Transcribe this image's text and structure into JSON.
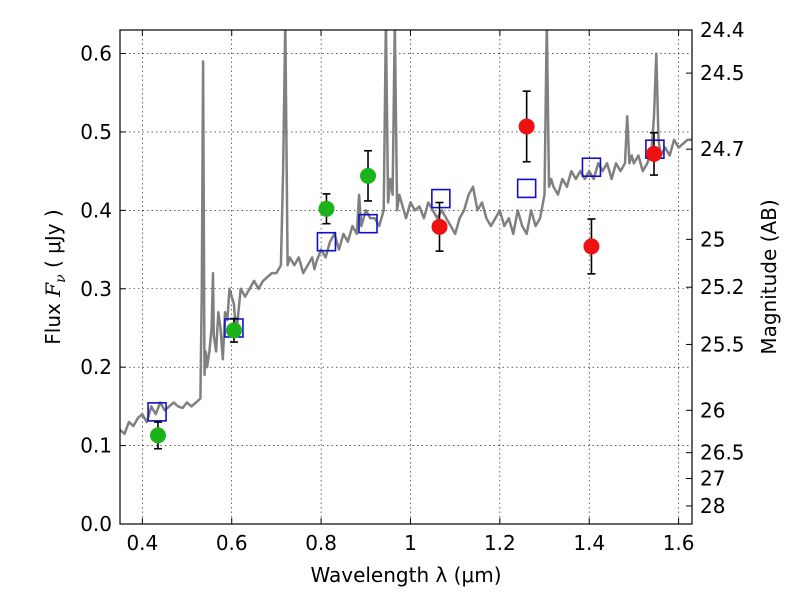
{
  "chart_data": {
    "type": "scatter",
    "xlabel": "Wavelength  λ (μm)",
    "ylabel": "Flux  F_ν  ( μJy )",
    "ylabel_parts": {
      "prefix": "Flux  ",
      "symbol": "F",
      "subscript": "ν",
      "unit": "  ( μJy )"
    },
    "y2label": "Magnitude (AB)",
    "xlim": [
      0.35,
      1.63
    ],
    "ylim": [
      0.0,
      0.63
    ],
    "grid": true,
    "xticks": [
      0.4,
      0.6,
      0.8,
      1.0,
      1.2,
      1.4,
      1.6
    ],
    "xtick_labels": [
      "0.4",
      "0.6",
      "0.8",
      "1",
      "1.2",
      "1.4",
      "1.6"
    ],
    "yticks": [
      0.0,
      0.1,
      0.2,
      0.3,
      0.4,
      0.5,
      0.6
    ],
    "ytick_labels": [
      "0.0",
      "0.1",
      "0.2",
      "0.3",
      "0.4",
      "0.5",
      "0.6"
    ],
    "right_ticks": [
      {
        "label": "24.4",
        "flux": 0.63
      },
      {
        "label": "24.5",
        "flux": 0.575
      },
      {
        "label": "24.7",
        "flux": 0.478
      },
      {
        "label": "25",
        "flux": 0.363
      },
      {
        "label": "25.2",
        "flux": 0.302
      },
      {
        "label": "25.5",
        "flux": 0.229
      },
      {
        "label": "26",
        "flux": 0.145
      },
      {
        "label": "26.5",
        "flux": 0.091
      },
      {
        "label": "27",
        "flux": 0.058
      },
      {
        "label": "28",
        "flux": 0.023
      }
    ],
    "colors": {
      "spectrum": "#808080",
      "green": "#1ab41a",
      "red": "#ee1111",
      "model": "#1010cc",
      "errorbar": "#000000"
    },
    "spectrum": {
      "name": "model spectrum",
      "x": [
        0.35,
        0.36,
        0.37,
        0.38,
        0.39,
        0.4,
        0.41,
        0.42,
        0.43,
        0.44,
        0.45,
        0.46,
        0.47,
        0.48,
        0.49,
        0.5,
        0.51,
        0.52,
        0.53,
        0.533,
        0.536,
        0.539,
        0.542,
        0.545,
        0.55,
        0.555,
        0.558,
        0.56,
        0.565,
        0.57,
        0.575,
        0.58,
        0.585,
        0.59,
        0.595,
        0.6,
        0.605,
        0.61,
        0.615,
        0.62,
        0.63,
        0.64,
        0.65,
        0.66,
        0.67,
        0.68,
        0.69,
        0.7,
        0.71,
        0.715,
        0.72,
        0.725,
        0.73,
        0.74,
        0.75,
        0.76,
        0.77,
        0.78,
        0.785,
        0.79,
        0.8,
        0.81,
        0.82,
        0.83,
        0.84,
        0.85,
        0.86,
        0.87,
        0.88,
        0.885,
        0.89,
        0.9,
        0.91,
        0.92,
        0.93,
        0.94,
        0.945,
        0.95,
        0.955,
        0.96,
        0.965,
        0.97,
        0.975,
        0.98,
        0.99,
        1.0,
        1.01,
        1.02,
        1.03,
        1.04,
        1.05,
        1.06,
        1.07,
        1.08,
        1.09,
        1.1,
        1.11,
        1.12,
        1.13,
        1.14,
        1.15,
        1.16,
        1.17,
        1.18,
        1.19,
        1.2,
        1.21,
        1.22,
        1.23,
        1.24,
        1.25,
        1.26,
        1.27,
        1.28,
        1.29,
        1.3,
        1.305,
        1.31,
        1.315,
        1.32,
        1.33,
        1.34,
        1.35,
        1.36,
        1.37,
        1.38,
        1.39,
        1.4,
        1.41,
        1.42,
        1.43,
        1.44,
        1.45,
        1.46,
        1.47,
        1.48,
        1.485,
        1.49,
        1.495,
        1.5,
        1.51,
        1.52,
        1.53,
        1.54,
        1.545,
        1.55,
        1.555,
        1.56,
        1.57,
        1.58,
        1.59,
        1.6,
        1.61,
        1.62,
        1.63
      ],
      "y": [
        0.12,
        0.115,
        0.13,
        0.125,
        0.135,
        0.14,
        0.13,
        0.15,
        0.14,
        0.155,
        0.145,
        0.15,
        0.155,
        0.15,
        0.148,
        0.155,
        0.15,
        0.155,
        0.16,
        0.3,
        0.59,
        0.19,
        0.22,
        0.2,
        0.22,
        0.25,
        0.32,
        0.24,
        0.22,
        0.27,
        0.25,
        0.21,
        0.27,
        0.26,
        0.3,
        0.29,
        0.28,
        0.24,
        0.27,
        0.3,
        0.29,
        0.3,
        0.31,
        0.3,
        0.31,
        0.315,
        0.32,
        0.32,
        0.33,
        0.45,
        0.64,
        0.33,
        0.34,
        0.33,
        0.34,
        0.32,
        0.33,
        0.34,
        0.325,
        0.335,
        0.35,
        0.34,
        0.36,
        0.37,
        0.35,
        0.37,
        0.36,
        0.38,
        0.37,
        0.42,
        0.38,
        0.4,
        0.39,
        0.39,
        0.38,
        0.4,
        0.64,
        0.41,
        0.44,
        0.42,
        0.64,
        0.4,
        0.42,
        0.41,
        0.39,
        0.41,
        0.4,
        0.405,
        0.39,
        0.41,
        0.4,
        0.39,
        0.4,
        0.39,
        0.38,
        0.37,
        0.39,
        0.4,
        0.42,
        0.43,
        0.4,
        0.41,
        0.39,
        0.38,
        0.39,
        0.4,
        0.38,
        0.39,
        0.37,
        0.4,
        0.38,
        0.37,
        0.4,
        0.38,
        0.39,
        0.42,
        0.64,
        0.43,
        0.44,
        0.43,
        0.42,
        0.44,
        0.43,
        0.45,
        0.44,
        0.45,
        0.44,
        0.45,
        0.44,
        0.46,
        0.45,
        0.46,
        0.44,
        0.46,
        0.45,
        0.46,
        0.52,
        0.46,
        0.47,
        0.46,
        0.47,
        0.45,
        0.46,
        0.48,
        0.52,
        0.6,
        0.49,
        0.47,
        0.48,
        0.47,
        0.49,
        0.48,
        0.485,
        0.49,
        0.49
      ]
    },
    "series": [
      {
        "name": "green photometry",
        "marker": "circle",
        "color": "green",
        "points": [
          {
            "x": 0.435,
            "y": 0.113,
            "err": 0.017
          },
          {
            "x": 0.605,
            "y": 0.247,
            "err": 0.015
          },
          {
            "x": 0.812,
            "y": 0.402,
            "err": 0.019
          },
          {
            "x": 0.905,
            "y": 0.444,
            "err": 0.032
          }
        ]
      },
      {
        "name": "red photometry",
        "marker": "circle",
        "color": "red",
        "points": [
          {
            "x": 1.065,
            "y": 0.379,
            "err": 0.031
          },
          {
            "x": 1.26,
            "y": 0.507,
            "err": 0.045
          },
          {
            "x": 1.405,
            "y": 0.354,
            "err": 0.035
          },
          {
            "x": 1.545,
            "y": 0.472,
            "err": 0.027
          }
        ]
      },
      {
        "name": "model photometry",
        "marker": "square",
        "color": "model",
        "points": [
          {
            "x": 0.433,
            "y": 0.143
          },
          {
            "x": 0.605,
            "y": 0.25
          },
          {
            "x": 0.812,
            "y": 0.36
          },
          {
            "x": 0.905,
            "y": 0.383
          },
          {
            "x": 1.068,
            "y": 0.415
          },
          {
            "x": 1.26,
            "y": 0.428
          },
          {
            "x": 1.405,
            "y": 0.455
          },
          {
            "x": 1.547,
            "y": 0.478
          }
        ]
      }
    ]
  }
}
